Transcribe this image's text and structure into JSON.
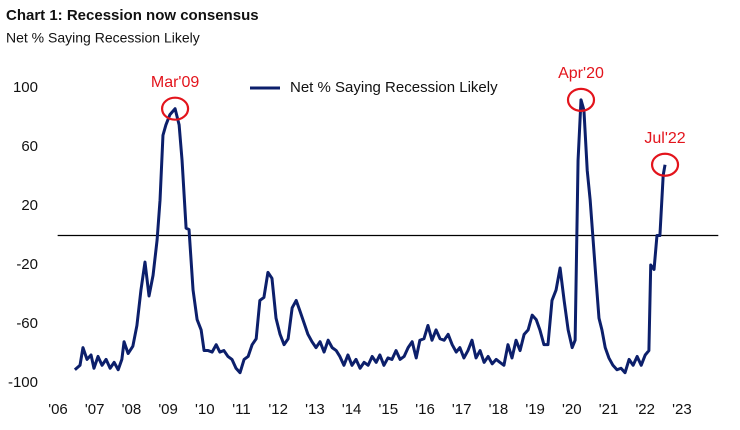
{
  "chart_data": {
    "type": "line",
    "title": "Chart 1: Recession now consensus",
    "subtitle": "Net % Saying Recession Likely",
    "x": [
      2006.46,
      2006.6,
      2006.68,
      2006.79,
      2006.9,
      2006.98,
      2007.09,
      2007.2,
      2007.31,
      2007.42,
      2007.53,
      2007.64,
      2007.74,
      2007.8,
      2007.91,
      2008.04,
      2008.15,
      2008.26,
      2008.37,
      2008.48,
      2008.59,
      2008.7,
      2008.78,
      2008.86,
      2008.94,
      2009.05,
      2009.19,
      2009.3,
      2009.38,
      2009.49,
      2009.57,
      2009.68,
      2009.79,
      2009.9,
      2009.98,
      2010.09,
      2010.2,
      2010.31,
      2010.41,
      2010.52,
      2010.63,
      2010.74,
      2010.85,
      2010.96,
      2011.07,
      2011.18,
      2011.29,
      2011.4,
      2011.5,
      2011.61,
      2011.72,
      2011.83,
      2011.94,
      2012.05,
      2012.16,
      2012.27,
      2012.38,
      2012.49,
      2012.59,
      2012.7,
      2012.81,
      2012.92,
      2013.03,
      2013.14,
      2013.25,
      2013.36,
      2013.47,
      2013.58,
      2013.68,
      2013.79,
      2013.9,
      2014.01,
      2014.12,
      2014.23,
      2014.34,
      2014.45,
      2014.56,
      2014.67,
      2014.77,
      2014.88,
      2014.99,
      2015.1,
      2015.21,
      2015.32,
      2015.43,
      2015.54,
      2015.65,
      2015.76,
      2015.86,
      2015.97,
      2016.08,
      2016.19,
      2016.3,
      2016.41,
      2016.52,
      2016.63,
      2016.74,
      2016.85,
      2016.95,
      2017.06,
      2017.17,
      2017.28,
      2017.39,
      2017.5,
      2017.61,
      2017.72,
      2017.83,
      2017.94,
      2018.04,
      2018.15,
      2018.26,
      2018.37,
      2018.48,
      2018.59,
      2018.7,
      2018.81,
      2018.92,
      2019.03,
      2019.13,
      2019.24,
      2019.35,
      2019.46,
      2019.57,
      2019.68,
      2019.79,
      2019.9,
      2020.01,
      2020.09,
      2020.17,
      2020.25,
      2020.33,
      2020.42,
      2020.5,
      2020.58,
      2020.66,
      2020.74,
      2020.82,
      2020.91,
      2021.01,
      2021.12,
      2021.23,
      2021.34,
      2021.45,
      2021.56,
      2021.67,
      2021.78,
      2021.89,
      2022.0,
      2022.1,
      2022.15,
      2022.24,
      2022.32,
      2022.4,
      2022.49,
      2022.54
    ],
    "series": [
      {
        "name": "Net % Saying Recession Likely",
        "color": "#0c1f6b",
        "values": [
          -91,
          -88,
          -76,
          -84,
          -81,
          -90,
          -82,
          -88,
          -84,
          -90,
          -86,
          -91,
          -84,
          -72,
          -80,
          -75,
          -61,
          -37,
          -18,
          -41,
          -27,
          -3,
          24,
          68,
          75,
          82,
          86,
          75,
          51,
          5,
          4,
          -37,
          -57,
          -64,
          -78,
          -78,
          -79,
          -74,
          -79,
          -78,
          -82,
          -84,
          -90,
          -93,
          -84,
          -82,
          -74,
          -70,
          -44,
          -42,
          -25,
          -29,
          -56,
          -67,
          -74,
          -70,
          -49,
          -44,
          -51,
          -59,
          -67,
          -72,
          -76,
          -72,
          -79,
          -71,
          -76,
          -78,
          -82,
          -88,
          -81,
          -88,
          -84,
          -90,
          -86,
          -88,
          -82,
          -86,
          -81,
          -88,
          -83,
          -84,
          -78,
          -84,
          -82,
          -76,
          -72,
          -83,
          -71,
          -70,
          -61,
          -71,
          -64,
          -70,
          -71,
          -67,
          -74,
          -79,
          -76,
          -83,
          -78,
          -71,
          -83,
          -78,
          -86,
          -82,
          -87,
          -84,
          -86,
          -88,
          -74,
          -83,
          -71,
          -78,
          -67,
          -64,
          -54,
          -57,
          -64,
          -74,
          -74,
          -44,
          -37,
          -22,
          -44,
          -64,
          -76,
          -71,
          51,
          92,
          85,
          44,
          24,
          -3,
          -30,
          -56,
          -64,
          -76,
          -83,
          -88,
          -91,
          -90,
          -93,
          -84,
          -88,
          -82,
          -88,
          -81,
          -78,
          -20,
          -23,
          0,
          0,
          41,
          48
        ]
      }
    ],
    "xlim": [
      2005.5,
      2024.1
    ],
    "xticks": [
      {
        "value": 2006,
        "label": "'06"
      },
      {
        "value": 2007,
        "label": "'07"
      },
      {
        "value": 2008,
        "label": "'08"
      },
      {
        "value": 2009,
        "label": "'09"
      },
      {
        "value": 2010,
        "label": "'10"
      },
      {
        "value": 2011,
        "label": "'11"
      },
      {
        "value": 2012,
        "label": "'12"
      },
      {
        "value": 2013,
        "label": "'13"
      },
      {
        "value": 2014,
        "label": "'14"
      },
      {
        "value": 2015,
        "label": "'15"
      },
      {
        "value": 2016,
        "label": "'16"
      },
      {
        "value": 2017,
        "label": "'17"
      },
      {
        "value": 2018,
        "label": "'18"
      },
      {
        "value": 2019,
        "label": "'19"
      },
      {
        "value": 2020,
        "label": "'20"
      },
      {
        "value": 2021,
        "label": "'21"
      },
      {
        "value": 2022,
        "label": "'22"
      },
      {
        "value": 2023,
        "label": "'23"
      }
    ],
    "ylim": [
      -108,
      118
    ],
    "yticks": [
      100,
      60,
      20,
      -20,
      -60,
      -100
    ],
    "hline": 0,
    "grid": false,
    "legend": "top",
    "annotations": [
      {
        "text": "Mar'09",
        "x": 2009.19,
        "y": 86,
        "color": "#e3141c"
      },
      {
        "text": "Apr'20",
        "x": 2020.25,
        "y": 92,
        "color": "#e3141c"
      },
      {
        "text": "Jul'22",
        "x": 2022.54,
        "y": 48,
        "color": "#e3141c"
      }
    ]
  }
}
